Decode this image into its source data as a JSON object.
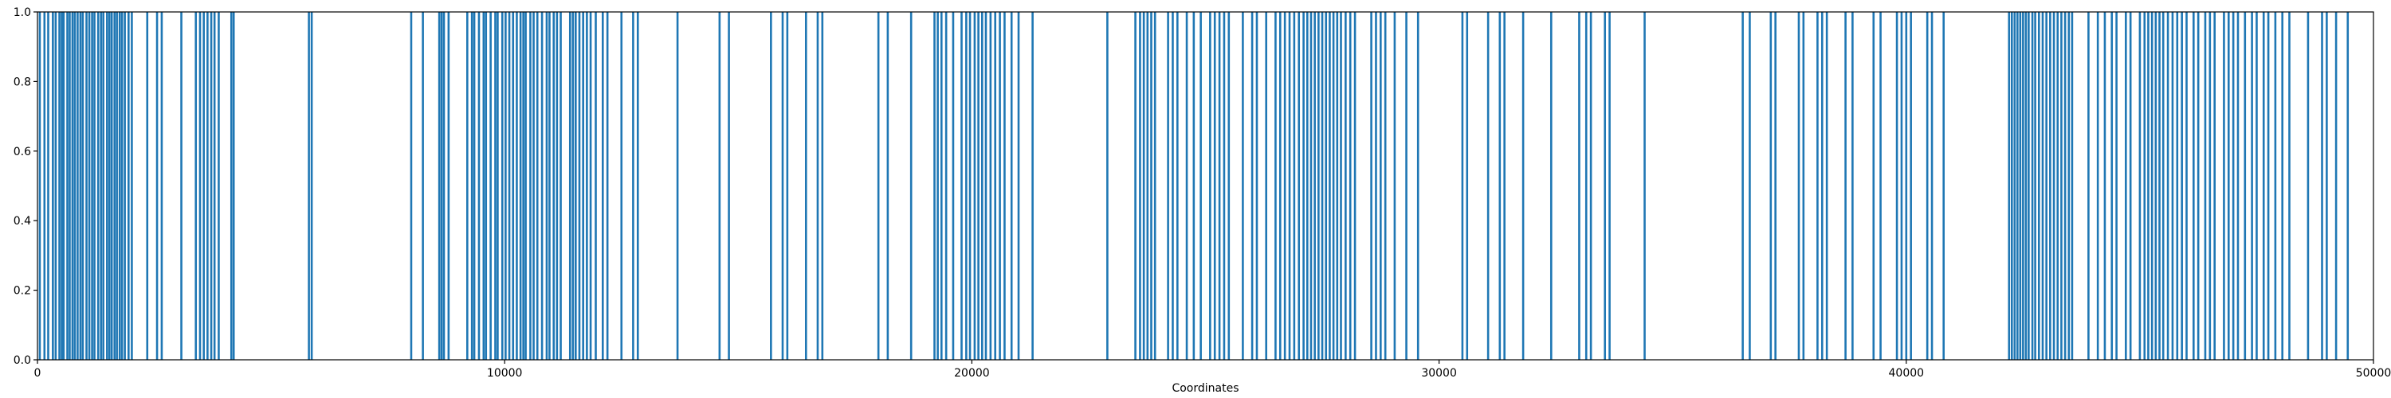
{
  "chart_data": {
    "type": "bar",
    "title": "",
    "xlabel": "Coordinates",
    "ylabel": "",
    "xlim": [
      0,
      50000
    ],
    "ylim": [
      0,
      1.0
    ],
    "grid": false,
    "series_color": "#1f77b4",
    "x_ticks": [
      0,
      10000,
      20000,
      30000,
      40000,
      50000
    ],
    "x_tick_labels": [
      "0",
      "10000",
      "20000",
      "30000",
      "40000",
      "50000"
    ],
    "y_ticks": [
      0.0,
      0.2,
      0.4,
      0.6,
      0.8,
      1.0
    ],
    "y_tick_labels": [
      "0.0",
      "0.2",
      "0.4",
      "0.6",
      "0.8",
      "1.0"
    ],
    "bar_value": 1.0,
    "positions": [
      50,
      150,
      230,
      330,
      390,
      470,
      520,
      560,
      640,
      690,
      750,
      800,
      860,
      920,
      970,
      1050,
      1110,
      1170,
      1220,
      1300,
      1360,
      1410,
      1490,
      1540,
      1590,
      1650,
      1700,
      1760,
      1810,
      1870,
      1950,
      2020,
      2350,
      2560,
      2660,
      3080,
      3390,
      3480,
      3560,
      3640,
      3720,
      3790,
      3880,
      4150,
      4200,
      5810,
      5870,
      8000,
      8250,
      8600,
      8650,
      8700,
      8800,
      9200,
      9300,
      9350,
      9450,
      9550,
      9600,
      9700,
      9800,
      9850,
      9950,
      10020,
      10100,
      10180,
      10260,
      10340,
      10400,
      10450,
      10550,
      10620,
      10700,
      10800,
      10900,
      10960,
      11050,
      11120,
      11200,
      11400,
      11460,
      11520,
      11600,
      11680,
      11760,
      11840,
      11950,
      12100,
      12200,
      12500,
      12750,
      12850,
      13700,
      14600,
      14800,
      15700,
      15950,
      16050,
      16450,
      16700,
      16800,
      18000,
      18200,
      18700,
      19200,
      19270,
      19350,
      19450,
      19600,
      19780,
      19880,
      19960,
      20060,
      20140,
      20220,
      20300,
      20400,
      20500,
      20600,
      20700,
      20850,
      21000,
      21300,
      22900,
      23500,
      23600,
      23680,
      23760,
      23840,
      23920,
      24200,
      24300,
      24400,
      24600,
      24750,
      24900,
      25100,
      25200,
      25300,
      25400,
      25500,
      25800,
      26000,
      26100,
      26300,
      26500,
      26600,
      26700,
      26800,
      26900,
      27000,
      27100,
      27180,
      27260,
      27340,
      27420,
      27500,
      27580,
      27660,
      27740,
      27820,
      27900,
      28000,
      28100,
      28200,
      28550,
      28650,
      28750,
      28850,
      29050,
      29300,
      29550,
      30500,
      30600,
      31050,
      31300,
      31400,
      31800,
      32400,
      33000,
      33150,
      33250,
      33550,
      33650,
      34400,
      36500,
      36650,
      37100,
      37200,
      37700,
      37800,
      38100,
      38200,
      38300,
      38700,
      38850,
      39300,
      39450,
      39800,
      39900,
      40000,
      40100,
      40450,
      40550,
      40800,
      42200,
      42260,
      42320,
      42380,
      42440,
      42500,
      42560,
      42620,
      42700,
      42760,
      42840,
      42920,
      43000,
      43080,
      43160,
      43240,
      43320,
      43400,
      43480,
      43550,
      43900,
      44100,
      44250,
      44400,
      44500,
      44700,
      44800,
      45000,
      45100,
      45180,
      45260,
      45340,
      45420,
      45500,
      45600,
      45700,
      45800,
      45900,
      46000,
      46150,
      46250,
      46400,
      46500,
      46600,
      46800,
      46900,
      47000,
      47100,
      47250,
      47400,
      47500,
      47650,
      47750,
      47900,
      48050,
      48200,
      48600,
      48900,
      49000,
      49200,
      49450
    ]
  }
}
